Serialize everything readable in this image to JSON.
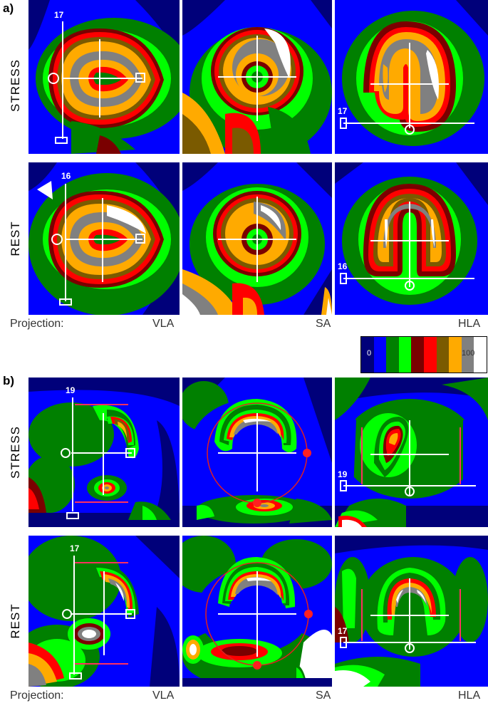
{
  "panels": {
    "a": {
      "label": "a)",
      "rows": [
        {
          "label": "STRESS",
          "slices": [
            "17",
            "",
            "17"
          ]
        },
        {
          "label": "REST",
          "slices": [
            "16",
            "",
            "16"
          ]
        }
      ]
    },
    "b": {
      "label": "b)",
      "rows": [
        {
          "label": "STRESS",
          "slices": [
            "19",
            "",
            "19"
          ]
        },
        {
          "label": "REST",
          "slices": [
            "17",
            "",
            "17"
          ]
        }
      ]
    }
  },
  "projection": {
    "label": "Projection:",
    "views": [
      "VLA",
      "SA",
      "HLA"
    ]
  },
  "colorbar": {
    "min_label": "0",
    "max_label": "100",
    "colors": [
      "#00007a",
      "#0000ff",
      "#008000",
      "#00ff00",
      "#7a0000",
      "#ff0000",
      "#7a5a00",
      "#ffaa00",
      "#808080",
      "#ffffff"
    ]
  }
}
